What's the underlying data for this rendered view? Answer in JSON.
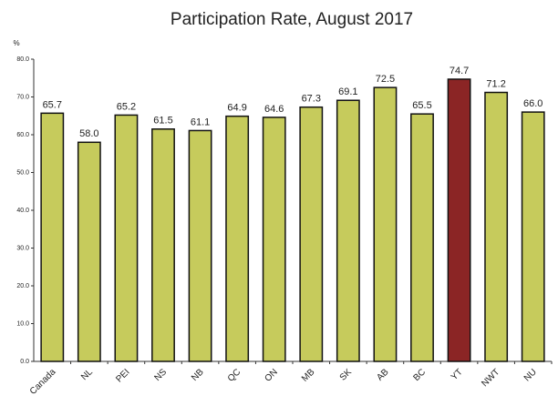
{
  "chart_data": {
    "type": "bar",
    "title": "Participation Rate, August 2017",
    "y_label": "%",
    "categories": [
      "Canada",
      "NL",
      "PEI",
      "NS",
      "NB",
      "QC",
      "ON",
      "MB",
      "SK",
      "AB",
      "BC",
      "YT",
      "NWT",
      "NU"
    ],
    "values": [
      65.7,
      58.0,
      65.2,
      61.5,
      61.1,
      64.9,
      64.6,
      67.3,
      69.1,
      72.5,
      65.5,
      74.7,
      71.2,
      66.0
    ],
    "value_labels": [
      "65.7",
      "58.0",
      "65.2",
      "61.5",
      "61.1",
      "64.9",
      "64.6",
      "67.3",
      "69.1",
      "72.5",
      "65.5",
      "74.7",
      "71.2",
      "66.0"
    ],
    "colors": [
      "#c6cb5c",
      "#c6cb5c",
      "#c6cb5c",
      "#c6cb5c",
      "#c6cb5c",
      "#c6cb5c",
      "#c6cb5c",
      "#c6cb5c",
      "#c6cb5c",
      "#c6cb5c",
      "#c6cb5c",
      "#8b2525",
      "#c6cb5c",
      "#c6cb5c"
    ],
    "ylim": [
      0,
      80
    ],
    "yticks": [
      {
        "value": 0,
        "label": "0.0"
      },
      {
        "value": 10,
        "label": "10.0"
      },
      {
        "value": 20,
        "label": "20.0"
      },
      {
        "value": 30,
        "label": "30.0"
      },
      {
        "value": 40,
        "label": "40.0"
      },
      {
        "value": 50,
        "label": "50.0"
      },
      {
        "value": 60,
        "label": "60.0"
      },
      {
        "value": 70,
        "label": "70.0"
      },
      {
        "value": 80,
        "label": "80.0"
      }
    ],
    "grid": false
  }
}
